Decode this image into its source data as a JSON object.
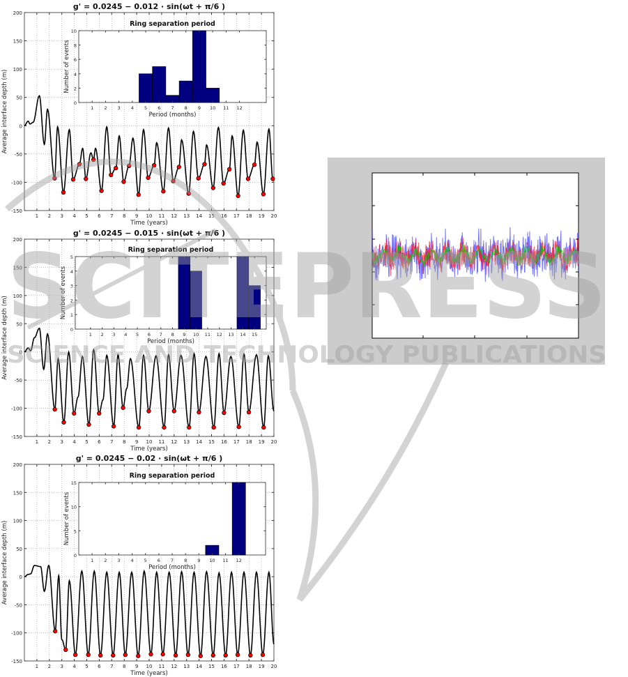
{
  "watermark": {
    "main": "SCITEPRESS",
    "sub": "SCIENCE AND TECHNOLOGY PUBLICATIONS",
    "color": "#9e9e9e"
  },
  "chart_data": [
    {
      "type": "line",
      "title": "g' = 0.0245 − 0.012 · sin(ωt + π/6 )",
      "xlabel": "Time (years)",
      "ylabel": "Average interface depth (m)",
      "xlim": [
        0,
        20
      ],
      "ylim": [
        -150,
        200
      ],
      "grid": true,
      "xticks": [
        1,
        2,
        3,
        4,
        5,
        6,
        7,
        8,
        9,
        10,
        11,
        12,
        13,
        14,
        15,
        16,
        17,
        18,
        19,
        20
      ],
      "yticks": [
        -150,
        -100,
        -50,
        0,
        50,
        100,
        150,
        200
      ],
      "line_color": "#000000",
      "marker_color": "#ff0000",
      "curve": [
        [
          0,
          0
        ],
        [
          0.3,
          8
        ],
        [
          0.45,
          3
        ],
        [
          0.7,
          6
        ],
        [
          1.2,
          53
        ],
        [
          1.6,
          -33
        ],
        [
          1.85,
          29
        ],
        [
          2.66,
          -2
        ],
        [
          3.6,
          -7
        ],
        [
          4.67,
          -40
        ],
        [
          5.33,
          -48
        ],
        [
          5.7,
          -40
        ],
        [
          6.6,
          -2
        ],
        [
          7.6,
          -18
        ],
        [
          8.7,
          -22
        ],
        [
          9.55,
          -7
        ],
        [
          10.6,
          -30
        ],
        [
          11.55,
          -4
        ],
        [
          12.6,
          -25
        ],
        [
          13.55,
          -10
        ],
        [
          14.6,
          -34
        ],
        [
          15.55,
          -3
        ],
        [
          16.65,
          -18
        ],
        [
          17.55,
          -8
        ],
        [
          18.65,
          -29
        ],
        [
          19.6,
          -6
        ]
      ],
      "minima": [
        [
          2.42,
          -93
        ],
        [
          3.13,
          -118
        ],
        [
          3.91,
          -95
        ],
        [
          4.41,
          -68
        ],
        [
          4.93,
          -94
        ],
        [
          5.54,
          -60
        ],
        [
          6.18,
          -115
        ],
        [
          6.94,
          -87
        ],
        [
          7.33,
          -75
        ],
        [
          7.96,
          -99
        ],
        [
          8.39,
          -71
        ],
        [
          9.15,
          -122
        ],
        [
          9.92,
          -92
        ],
        [
          10.4,
          -70
        ],
        [
          11.14,
          -116
        ],
        [
          11.93,
          -98
        ],
        [
          12.39,
          -73
        ],
        [
          13.17,
          -120
        ],
        [
          13.95,
          -93
        ],
        [
          14.44,
          -68
        ],
        [
          15.13,
          -110
        ],
        [
          15.96,
          -102
        ],
        [
          16.43,
          -77
        ],
        [
          17.13,
          -124
        ],
        [
          17.93,
          -94
        ],
        [
          18.44,
          -69
        ],
        [
          19.16,
          -121
        ],
        [
          19.91,
          -94
        ]
      ],
      "inset": {
        "type": "bar",
        "title": "Ring separation period",
        "xlabel": "Period (months)",
        "ylabel": "Number of events",
        "xlim": [
          0,
          14
        ],
        "ylim": [
          0,
          10
        ],
        "xticks": [
          1,
          2,
          3,
          4,
          5,
          6,
          7,
          8,
          9,
          10,
          11,
          12
        ],
        "yticks": [
          0,
          2,
          4,
          6,
          8,
          10
        ],
        "categories": [
          5,
          6,
          7,
          8,
          9,
          10
        ],
        "values": [
          4,
          5,
          1,
          3,
          10,
          2
        ],
        "color": "#000080"
      }
    },
    {
      "type": "line",
      "title": "g' = 0.0245 − 0.015 · sin(ωt + π/6 )",
      "xlabel": "Time (years)",
      "ylabel": "Average interface depth (m)",
      "xlim": [
        0,
        20
      ],
      "ylim": [
        -150,
        200
      ],
      "grid": true,
      "xticks": [
        1,
        2,
        3,
        4,
        5,
        6,
        7,
        8,
        9,
        10,
        11,
        12,
        13,
        14,
        15,
        16,
        17,
        18,
        19,
        20
      ],
      "yticks": [
        -150,
        -100,
        -50,
        0,
        50,
        100,
        150,
        200
      ],
      "line_color": "#000000",
      "marker_color": "#ff0000",
      "curve": [
        [
          0,
          0
        ],
        [
          0.3,
          7
        ],
        [
          0.5,
          2
        ],
        [
          0.8,
          25
        ],
        [
          1.2,
          42
        ],
        [
          1.55,
          -31
        ],
        [
          1.85,
          32
        ],
        [
          2.7,
          -12
        ],
        [
          3.55,
          0
        ],
        [
          4.3,
          -80
        ],
        [
          4.65,
          -8
        ],
        [
          5.55,
          4
        ],
        [
          6.3,
          -85
        ],
        [
          6.6,
          -6
        ],
        [
          7.5,
          -5
        ],
        [
          8.2,
          -65
        ],
        [
          8.5,
          -12
        ],
        [
          9.55,
          -6
        ],
        [
          10.55,
          -7
        ],
        [
          11.55,
          -5
        ],
        [
          12.55,
          -6
        ],
        [
          13.6,
          -3
        ],
        [
          14.55,
          -8
        ],
        [
          15.6,
          -3
        ],
        [
          16.55,
          -8
        ],
        [
          17.6,
          -4
        ],
        [
          18.6,
          -5
        ],
        [
          19.55,
          -7
        ],
        [
          20,
          -105
        ]
      ],
      "minima": [
        [
          2.44,
          -102
        ],
        [
          3.16,
          -125
        ],
        [
          3.98,
          -109
        ],
        [
          5.17,
          -129
        ],
        [
          5.99,
          -109
        ],
        [
          7.16,
          -132
        ],
        [
          7.91,
          -99
        ],
        [
          9.17,
          -134
        ],
        [
          9.97,
          -105
        ],
        [
          11.2,
          -134
        ],
        [
          12.0,
          -105
        ],
        [
          13.2,
          -134
        ],
        [
          13.99,
          -107
        ],
        [
          15.18,
          -134
        ],
        [
          16.0,
          -108
        ],
        [
          17.19,
          -133
        ],
        [
          17.99,
          -107
        ],
        [
          19.18,
          -134
        ]
      ],
      "inset": {
        "type": "bar",
        "title": "Ring separation period",
        "xlabel": "Period (months)",
        "ylabel": "Number of events",
        "xlim": [
          -0.3,
          16
        ],
        "ylim": [
          0,
          5
        ],
        "xticks": [
          1,
          2,
          3,
          4,
          5,
          6,
          7,
          8,
          9,
          10,
          11,
          12,
          13,
          14,
          15
        ],
        "yticks": [
          0,
          1,
          2,
          3,
          4,
          5
        ],
        "categories": [
          9,
          10,
          14,
          15
        ],
        "values": [
          5,
          4,
          5,
          3
        ],
        "color": "#000080"
      }
    },
    {
      "type": "line",
      "title": "g' = 0.0245 − 0.02 · sin(ωt + π/6 )",
      "xlabel": "Time (years)",
      "ylabel": "Average interface depth (m)",
      "xlim": [
        0,
        20
      ],
      "ylim": [
        -150,
        200
      ],
      "grid": true,
      "xticks": [
        1,
        2,
        3,
        4,
        5,
        6,
        7,
        8,
        9,
        10,
        11,
        12,
        13,
        14,
        15,
        16,
        17,
        18,
        19,
        20
      ],
      "yticks": [
        -150,
        -100,
        -50,
        0,
        50,
        100,
        150,
        200
      ],
      "line_color": "#000000",
      "marker_color": "#ff0000",
      "curve": [
        [
          0,
          0
        ],
        [
          0.3,
          4
        ],
        [
          0.5,
          5
        ],
        [
          0.8,
          20
        ],
        [
          1.3,
          18
        ],
        [
          1.6,
          -26
        ],
        [
          1.95,
          20
        ],
        [
          2.75,
          2
        ],
        [
          3.0,
          -112
        ],
        [
          3.6,
          -7
        ],
        [
          4.6,
          10
        ],
        [
          5.6,
          10
        ],
        [
          6.6,
          8
        ],
        [
          7.6,
          8
        ],
        [
          8.6,
          8
        ],
        [
          9.6,
          10
        ],
        [
          10.6,
          8
        ],
        [
          11.6,
          8
        ],
        [
          12.6,
          9
        ],
        [
          13.6,
          8
        ],
        [
          14.6,
          9
        ],
        [
          15.6,
          7
        ],
        [
          16.6,
          8
        ],
        [
          17.6,
          8
        ],
        [
          18.6,
          8
        ],
        [
          19.6,
          8
        ],
        [
          20,
          -120
        ]
      ],
      "minima": [
        [
          2.47,
          -97
        ],
        [
          3.31,
          -130
        ],
        [
          4.09,
          -139
        ],
        [
          5.12,
          -139
        ],
        [
          6.1,
          -140
        ],
        [
          7.11,
          -140
        ],
        [
          8.09,
          -139
        ],
        [
          9.12,
          -141
        ],
        [
          10.14,
          -138
        ],
        [
          11.1,
          -138
        ],
        [
          12.13,
          -140
        ],
        [
          13.12,
          -139
        ],
        [
          14.12,
          -141
        ],
        [
          15.13,
          -140
        ],
        [
          16.13,
          -140
        ],
        [
          17.1,
          -139
        ],
        [
          18.12,
          -140
        ],
        [
          19.11,
          -139
        ]
      ],
      "inset": {
        "type": "bar",
        "title": "Ring separation period",
        "xlabel": "Period (months)",
        "ylabel": "Number of events",
        "xlim": [
          0,
          14
        ],
        "ylim": [
          0,
          15
        ],
        "xticks": [
          1,
          2,
          3,
          4,
          5,
          6,
          7,
          8,
          9,
          10,
          11,
          12
        ],
        "yticks": [
          0,
          5,
          10,
          15
        ],
        "categories": [
          10,
          12
        ],
        "values": [
          2,
          15
        ],
        "color": "#000080"
      }
    },
    {
      "type": "line",
      "grid": false,
      "series_colors": [
        "#0000ff",
        "#ff0000",
        "#00cc00"
      ],
      "background": "#cccccc"
    }
  ]
}
